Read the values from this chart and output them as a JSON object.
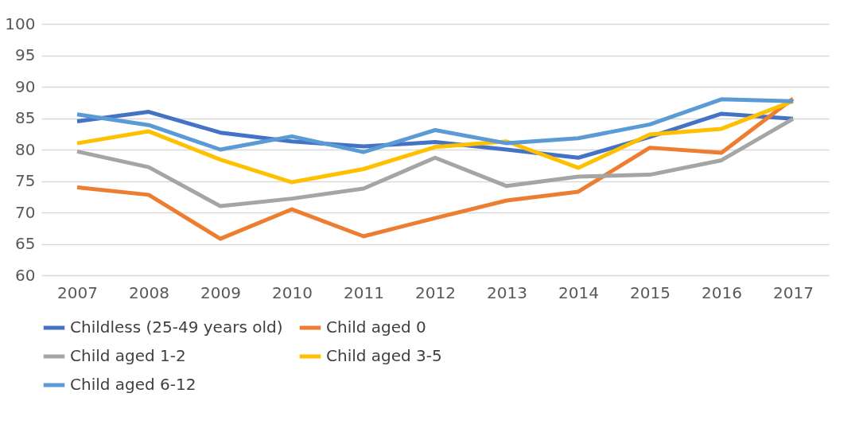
{
  "chart_data": {
    "type": "line",
    "categories": [
      "2007",
      "2008",
      "2009",
      "2010",
      "2011",
      "2012",
      "2013",
      "2014",
      "2015",
      "2016",
      "2017"
    ],
    "ylim": [
      60,
      100
    ],
    "yticks": [
      60,
      65,
      70,
      75,
      80,
      85,
      90,
      95,
      100
    ],
    "grid": "y",
    "legend": "bottom",
    "marker": "none",
    "line_style": "solid",
    "series": [
      {
        "name": "Childless (25-49 years old)",
        "color": "#4472c4",
        "values": [
          84.5,
          86,
          82.7,
          81.3,
          80.5,
          81.2,
          80,
          78.7,
          82,
          85.7,
          84.9
        ]
      },
      {
        "name": "Child aged 0",
        "color": "#ed7d31",
        "values": [
          74,
          72.8,
          65.8,
          70.5,
          66.2,
          69.1,
          71.9,
          73.3,
          80.3,
          79.5,
          88.1
        ]
      },
      {
        "name": "Child aged 1-2",
        "color": "#a5a5a5",
        "values": [
          79.7,
          77.2,
          71,
          72.2,
          73.8,
          78.7,
          74.2,
          75.7,
          76,
          78.3,
          84.9
        ]
      },
      {
        "name": "Child aged 3-5",
        "color": "#ffc000",
        "values": [
          81,
          82.9,
          78.4,
          74.8,
          76.9,
          80.4,
          81.3,
          77.1,
          82.4,
          83.3,
          87.7
        ]
      },
      {
        "name": "Child aged 6-12",
        "color": "#5b9bd5",
        "values": [
          85.6,
          83.9,
          80,
          82.1,
          79.6,
          83.1,
          81,
          81.8,
          84,
          88,
          87.7
        ]
      }
    ]
  }
}
